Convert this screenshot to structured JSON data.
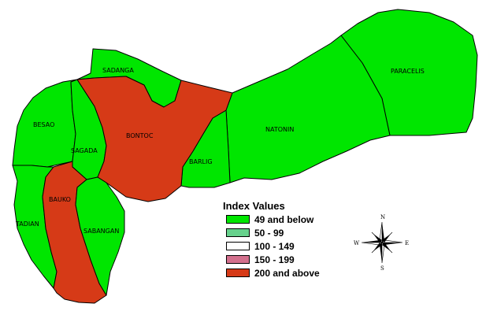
{
  "map": {
    "municipalities": [
      {
        "id": "sadanga",
        "label": "SADANGA",
        "category": 0
      },
      {
        "id": "paracelis",
        "label": "PARACELIS",
        "category": 0
      },
      {
        "id": "besao",
        "label": "BESAO",
        "category": 0
      },
      {
        "id": "sagada",
        "label": "SAGADA",
        "category": 0
      },
      {
        "id": "bontoc",
        "label": "BONTOC",
        "category": 4
      },
      {
        "id": "natonin",
        "label": "NATONIN",
        "category": 0
      },
      {
        "id": "barlig",
        "label": "BARLIG",
        "category": 0
      },
      {
        "id": "bauko",
        "label": "BAUKO",
        "category": 4
      },
      {
        "id": "tadian",
        "label": "TADIAN",
        "category": 0
      },
      {
        "id": "sabangan",
        "label": "SABANGAN",
        "category": 0
      }
    ]
  },
  "legend": {
    "title": "Index Values",
    "items": [
      {
        "label": "49 and below",
        "color": "#00e600"
      },
      {
        "label": "50 - 99",
        "color": "#66d18c"
      },
      {
        "label": "100 - 149",
        "color": "#ffffff"
      },
      {
        "label": "150 - 199",
        "color": "#d3708d"
      },
      {
        "label": "200 and above",
        "color": "#d63a17"
      }
    ]
  },
  "compass": {
    "n": "N",
    "s": "S",
    "e": "E",
    "w": "W"
  }
}
